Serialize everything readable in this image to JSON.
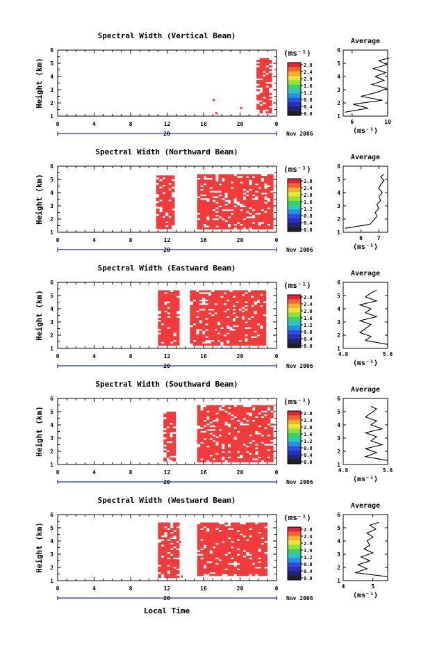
{
  "figure": {
    "xlabel": "Local Time",
    "date_label": "Nov 2006",
    "day_label": "20",
    "unit_label": "(ms⁻¹)",
    "height_label": "Height (km)",
    "average_title": "Average",
    "colors": {
      "data": "#f23b3b",
      "axis": "#000000",
      "day_line": "#1a2fb0"
    }
  },
  "colorbar": {
    "ticks": [
      "2.8",
      "2.4",
      "2.0",
      "1.6",
      "1.2",
      "0.8",
      "0.4",
      "0.0"
    ],
    "colors": [
      "#e8213a",
      "#f5642a",
      "#f7b02c",
      "#e6e733",
      "#8de33b",
      "#34d36e",
      "#2fc4c7",
      "#2b8fe8",
      "#2a4fe0",
      "#2a2fb8",
      "#232370",
      "#202020"
    ]
  },
  "chart_data": [
    {
      "type": "heatmap",
      "title": "Spectral Width (Vertical Beam)",
      "xlabel": "",
      "ylabel": "Height (km)",
      "xlim": [
        0,
        24
      ],
      "ylim": [
        1,
        6
      ],
      "xticks": [
        "0",
        "4",
        "8",
        "12",
        "16",
        "20",
        "0"
      ],
      "yticks": [
        "1",
        "2",
        "3",
        "4",
        "5",
        "6"
      ],
      "regions": [
        [
          21.8,
          23.2,
          1.3,
          5.4
        ]
      ],
      "fill_fraction": 0.7,
      "extra_cells": [
        [
          17.0,
          2.3
        ],
        [
          20.0,
          1.7
        ],
        [
          17.3,
          1.3
        ]
      ],
      "average": {
        "xlim": [
          5,
          10
        ],
        "xticks": [
          "6",
          "10"
        ],
        "xlabel": "(ms⁻¹)",
        "heights": [
          1.3,
          1.6,
          1.9,
          2.2,
          2.5,
          2.8,
          3.1,
          3.4,
          3.7,
          4.0,
          4.3,
          4.6,
          4.9,
          5.2,
          5.4
        ],
        "values": [
          5.2,
          7.8,
          6.1,
          9.4,
          7.0,
          8.8,
          9.9,
          8.2,
          9.6,
          8.6,
          9.8,
          8.4,
          9.9,
          9.0,
          10.2
        ]
      }
    },
    {
      "type": "heatmap",
      "title": "Spectral Width (Northward Beam)",
      "xlabel": "",
      "ylabel": "Height (km)",
      "xlim": [
        0,
        24
      ],
      "ylim": [
        1,
        6
      ],
      "xticks": [
        "0",
        "4",
        "8",
        "12",
        "16",
        "20",
        "0"
      ],
      "yticks": [
        "1",
        "2",
        "3",
        "4",
        "5",
        "6"
      ],
      "regions": [
        [
          10.8,
          12.8,
          1.4,
          5.3
        ],
        [
          15.3,
          23.5,
          1.3,
          5.4
        ]
      ],
      "fill_fraction": 0.82,
      "extra_cells": [],
      "average": {
        "xlim": [
          5,
          7.5
        ],
        "xticks": [
          "6",
          "7"
        ],
        "xlabel": "(ms⁻¹)",
        "heights": [
          1.3,
          1.6,
          1.9,
          2.2,
          2.5,
          2.8,
          3.1,
          3.4,
          3.7,
          4.0,
          4.3,
          4.6,
          4.9,
          5.2,
          5.4
        ],
        "values": [
          5.1,
          6.5,
          6.7,
          6.9,
          6.8,
          7.0,
          6.9,
          7.1,
          7.0,
          7.2,
          7.0,
          7.1,
          7.3,
          7.1,
          7.3
        ]
      }
    },
    {
      "type": "heatmap",
      "title": "Spectral Width (Eastward Beam)",
      "xlabel": "",
      "ylabel": "Height (km)",
      "xlim": [
        0,
        24
      ],
      "ylim": [
        1,
        6
      ],
      "xticks": [
        "0",
        "4",
        "8",
        "12",
        "16",
        "20",
        "0"
      ],
      "yticks": [
        "1",
        "2",
        "3",
        "4",
        "5",
        "6"
      ],
      "regions": [
        [
          11.0,
          13.2,
          1.3,
          5.4
        ],
        [
          14.5,
          22.8,
          1.3,
          5.4
        ]
      ],
      "fill_fraction": 0.84,
      "extra_cells": [],
      "average": {
        "xlim": [
          4.8,
          5.6
        ],
        "xticks": [
          "4.8",
          "5.6"
        ],
        "xlabel": "(ms⁻¹)",
        "heights": [
          1.3,
          1.6,
          1.9,
          2.2,
          2.5,
          2.8,
          3.1,
          3.4,
          3.7,
          4.0,
          4.3,
          4.6,
          4.9,
          5.2,
          5.4
        ],
        "values": [
          5.6,
          5.2,
          5.3,
          5.1,
          5.2,
          5.3,
          5.1,
          5.4,
          5.2,
          5.3,
          5.1,
          5.4,
          5.2,
          5.3,
          5.4
        ]
      }
    },
    {
      "type": "heatmap",
      "title": "Spectral Width (Southward Beam)",
      "xlabel": "",
      "ylabel": "Height (km)",
      "xlim": [
        0,
        24
      ],
      "ylim": [
        1,
        6
      ],
      "xticks": [
        "0",
        "4",
        "8",
        "12",
        "16",
        "20",
        "0"
      ],
      "yticks": [
        "1",
        "2",
        "3",
        "4",
        "5",
        "6"
      ],
      "regions": [
        [
          11.6,
          12.8,
          1.3,
          5.0
        ],
        [
          15.3,
          23.5,
          1.3,
          5.5
        ]
      ],
      "fill_fraction": 0.84,
      "extra_cells": [
        [
          21.2,
          5.4
        ]
      ],
      "average": {
        "xlim": [
          4.8,
          5.6
        ],
        "xticks": [
          "4.8",
          "5.6"
        ],
        "xlabel": "(ms⁻¹)",
        "heights": [
          1.3,
          1.6,
          1.9,
          2.2,
          2.5,
          2.8,
          3.1,
          3.4,
          3.7,
          4.0,
          4.3,
          4.6,
          4.9,
          5.2,
          5.4
        ],
        "values": [
          5.6,
          5.2,
          5.4,
          5.2,
          5.5,
          5.3,
          5.4,
          5.2,
          5.5,
          5.3,
          5.4,
          5.2,
          5.3,
          5.4,
          5.3
        ]
      }
    },
    {
      "type": "heatmap",
      "title": "Spectral Width (Westward Beam)",
      "xlabel": "Local Time",
      "ylabel": "Height (km)",
      "xlim": [
        0,
        24
      ],
      "ylim": [
        1,
        6
      ],
      "xticks": [
        "0",
        "4",
        "8",
        "12",
        "16",
        "20",
        "0"
      ],
      "yticks": [
        "1",
        "2",
        "3",
        "4",
        "5",
        "6"
      ],
      "regions": [
        [
          11.0,
          13.2,
          1.3,
          5.4
        ],
        [
          15.3,
          22.8,
          1.4,
          5.4
        ]
      ],
      "fill_fraction": 0.84,
      "extra_cells": [
        [
          13.3,
          4.0
        ],
        [
          13.5,
          1.4
        ]
      ],
      "average": {
        "xlim": [
          4,
          5.5
        ],
        "xticks": [
          "4",
          "5"
        ],
        "xlabel": "(ms⁻¹)",
        "heights": [
          1.3,
          1.6,
          1.9,
          2.2,
          2.5,
          2.8,
          3.1,
          3.4,
          3.7,
          4.0,
          4.3,
          4.6,
          4.9,
          5.2,
          5.4
        ],
        "values": [
          5.5,
          4.4,
          4.8,
          4.5,
          4.9,
          4.6,
          5.0,
          4.7,
          4.9,
          4.8,
          5.0,
          4.8,
          5.1,
          4.9,
          5.2
        ]
      }
    }
  ]
}
